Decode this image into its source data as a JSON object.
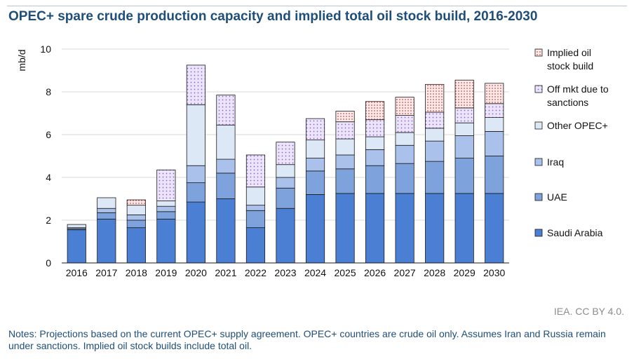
{
  "title": "OPEC+ spare crude production capacity and implied total oil stock build, 2016-2030",
  "source": "IEA. CC BY 4.0.",
  "notes": "Notes: Projections based on the current OPEC+ supply agreement. OPEC+ countries are crude oil only. Assumes Iran and Russia remain under sanctions. Implied oil stock builds include total oil.",
  "colors": {
    "saudi": "#4a7fd4",
    "uae": "#7ea2dc",
    "iraq": "#a9c1eb",
    "other": "#dde8f7",
    "sanctions_bg": "#ebe4fb",
    "sanctions_dot": "#8e61c7",
    "stock_bg": "#fbeaea",
    "stock_dot": "#d23f3f",
    "grid": "#d9d9d9",
    "bar_stroke": "#1a1a1a"
  },
  "chart_data": {
    "type": "bar",
    "stacked": true,
    "title": "OPEC+ spare crude production capacity and implied total oil stock build, 2016-2030",
    "ylabel": "mb/d",
    "xlabel": "",
    "ylim": [
      0,
      10
    ],
    "yticks": [
      0,
      2,
      4,
      6,
      8,
      10
    ],
    "grid": true,
    "legend_position": "right",
    "categories": [
      "2016",
      "2017",
      "2018",
      "2019",
      "2020",
      "2021",
      "2022",
      "2023",
      "2024",
      "2025",
      "2026",
      "2027",
      "2028",
      "2029",
      "2030"
    ],
    "series": [
      {
        "name": "Saudi Arabia",
        "key": "saudi",
        "values": [
          1.55,
          2.05,
          1.65,
          2.05,
          2.85,
          3.0,
          1.65,
          2.55,
          3.2,
          3.25,
          3.25,
          3.25,
          3.25,
          3.25,
          3.25
        ]
      },
      {
        "name": "UAE",
        "key": "uae",
        "values": [
          0.05,
          0.3,
          0.35,
          0.35,
          0.9,
          1.2,
          0.8,
          0.95,
          1.1,
          1.15,
          1.3,
          1.4,
          1.5,
          1.65,
          1.75
        ]
      },
      {
        "name": "Iraq",
        "key": "iraq",
        "values": [
          0.05,
          0.2,
          0.25,
          0.25,
          0.8,
          0.65,
          0.25,
          0.5,
          0.6,
          0.65,
          0.75,
          0.85,
          0.95,
          1.05,
          1.15
        ]
      },
      {
        "name": "Other OPEC+",
        "key": "other",
        "values": [
          0.15,
          0.5,
          0.45,
          0.25,
          2.85,
          1.6,
          0.85,
          0.6,
          0.85,
          0.75,
          0.6,
          0.6,
          0.6,
          0.6,
          0.65
        ]
      },
      {
        "name": "Off mkt due to sanctions",
        "key": "sanctions",
        "values": [
          0,
          0,
          0,
          1.45,
          1.85,
          1.4,
          1.5,
          1.05,
          1.0,
          0.8,
          0.8,
          0.8,
          0.75,
          0.7,
          0.65
        ]
      },
      {
        "name": "Implied oil stock build",
        "key": "stock",
        "values": [
          0,
          0,
          0.25,
          0,
          0,
          0,
          0,
          0,
          0,
          0.5,
          0.85,
          0.85,
          1.3,
          1.3,
          0.95
        ]
      }
    ],
    "legend": [
      {
        "key": "stock",
        "lines": [
          "Implied oil",
          "stock build"
        ]
      },
      {
        "key": "sanctions",
        "lines": [
          "Off mkt due to",
          "sanctions"
        ]
      },
      {
        "key": "other",
        "lines": [
          "Other OPEC+"
        ]
      },
      {
        "key": "iraq",
        "lines": [
          "Iraq"
        ]
      },
      {
        "key": "uae",
        "lines": [
          "UAE"
        ]
      },
      {
        "key": "saudi",
        "lines": [
          "Saudi Arabia"
        ]
      }
    ]
  }
}
